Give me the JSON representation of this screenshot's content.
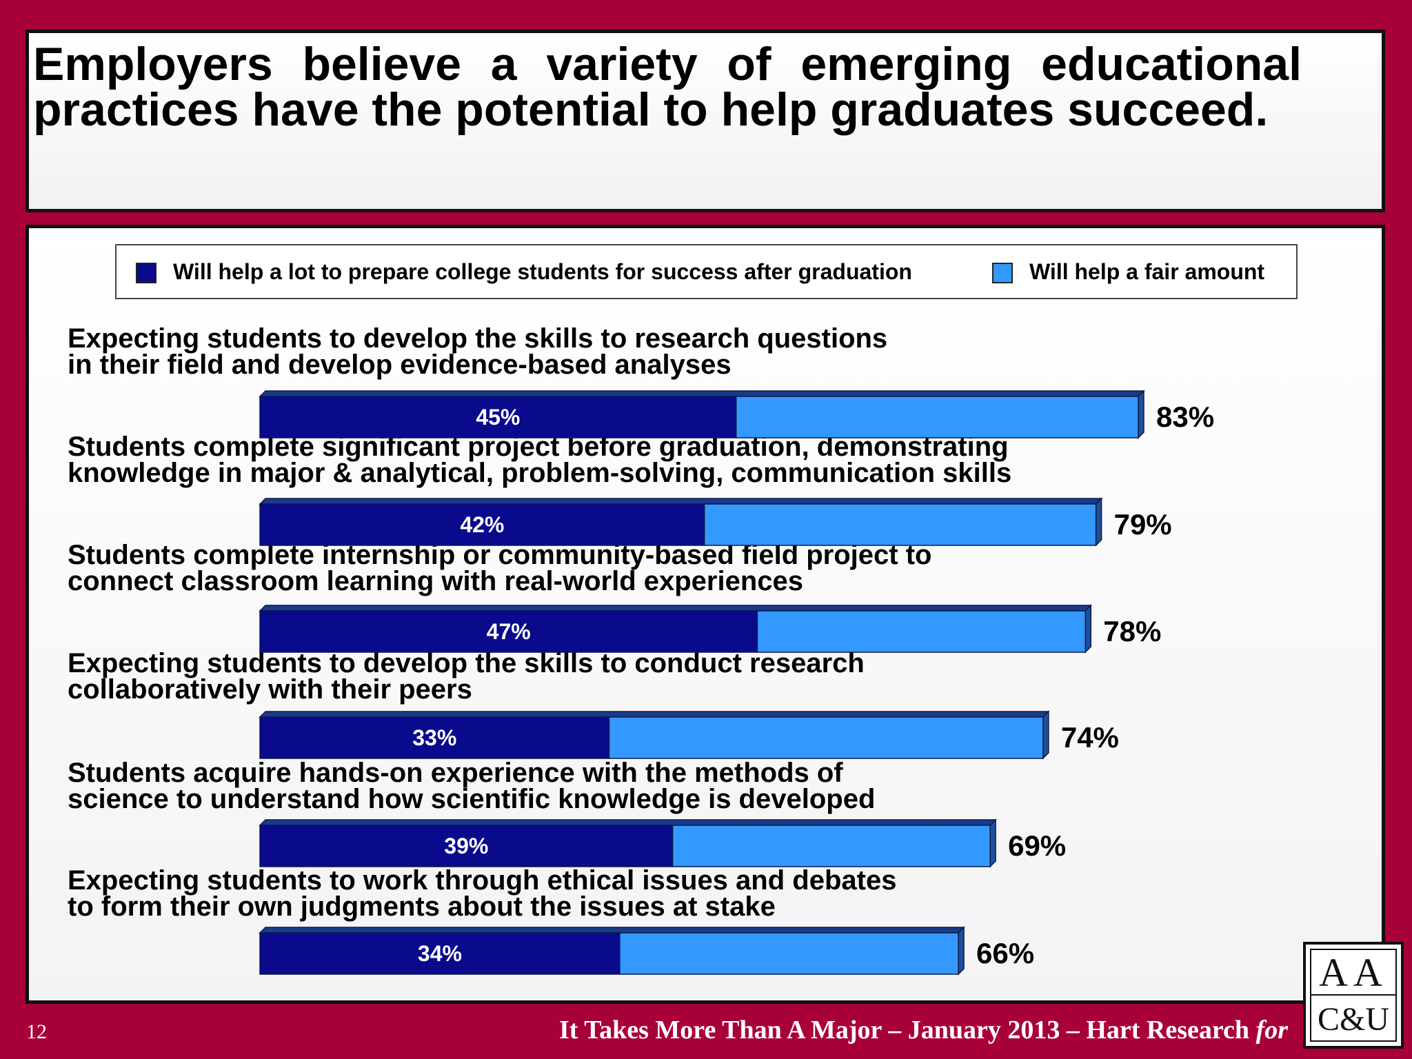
{
  "title": "Employers believe a variety of emerging educational practices have the potential to help graduates succeed.",
  "legend": {
    "series1": "Will help a lot to prepare college students for success after graduation",
    "series2": "Will help a fair amount"
  },
  "colors": {
    "series1": "#0A0A8C",
    "series2": "#3399FF",
    "background": "#A8003A"
  },
  "chart_data": {
    "type": "bar",
    "orientation": "horizontal",
    "stacked": true,
    "categories": [
      [
        "Expecting students to develop the skills to research questions",
        "in their field and develop evidence-based analyses"
      ],
      [
        "Students complete significant project before graduation, demonstrating",
        "knowledge in major & analytical, problem-solving,  communication skills"
      ],
      [
        "Students complete internship or community-based field project to",
        "connect classroom learning with real-world experiences"
      ],
      [
        "Expecting students to develop the skills to conduct research",
        "collaboratively with their peers"
      ],
      [
        "Students acquire hands-on experience with the methods of",
        "science to understand how scientific knowledge is developed"
      ],
      [
        "Expecting students to work through ethical issues and debates",
        "to form their own judgments about the issues at stake"
      ]
    ],
    "series": [
      {
        "name": "Will help a lot to prepare college students for success after graduation",
        "values": [
          45,
          42,
          47,
          33,
          39,
          34
        ]
      },
      {
        "name": "Will help a fair amount",
        "values": [
          38,
          37,
          31,
          41,
          30,
          32
        ]
      }
    ],
    "data_labels": [
      "45%",
      "42%",
      "47%",
      "33%",
      "39%",
      "34%"
    ],
    "total_labels": [
      "83%",
      "79%",
      "78%",
      "74%",
      "69%",
      "66%"
    ],
    "totals": [
      83,
      79,
      78,
      74,
      69,
      66
    ]
  },
  "footer": {
    "page_number": "12",
    "citation": "It Takes More Than A Major – January 2013 – Hart Research",
    "citation_italic": "for"
  },
  "logo": {
    "top": "AA",
    "bottom": "C&U"
  }
}
